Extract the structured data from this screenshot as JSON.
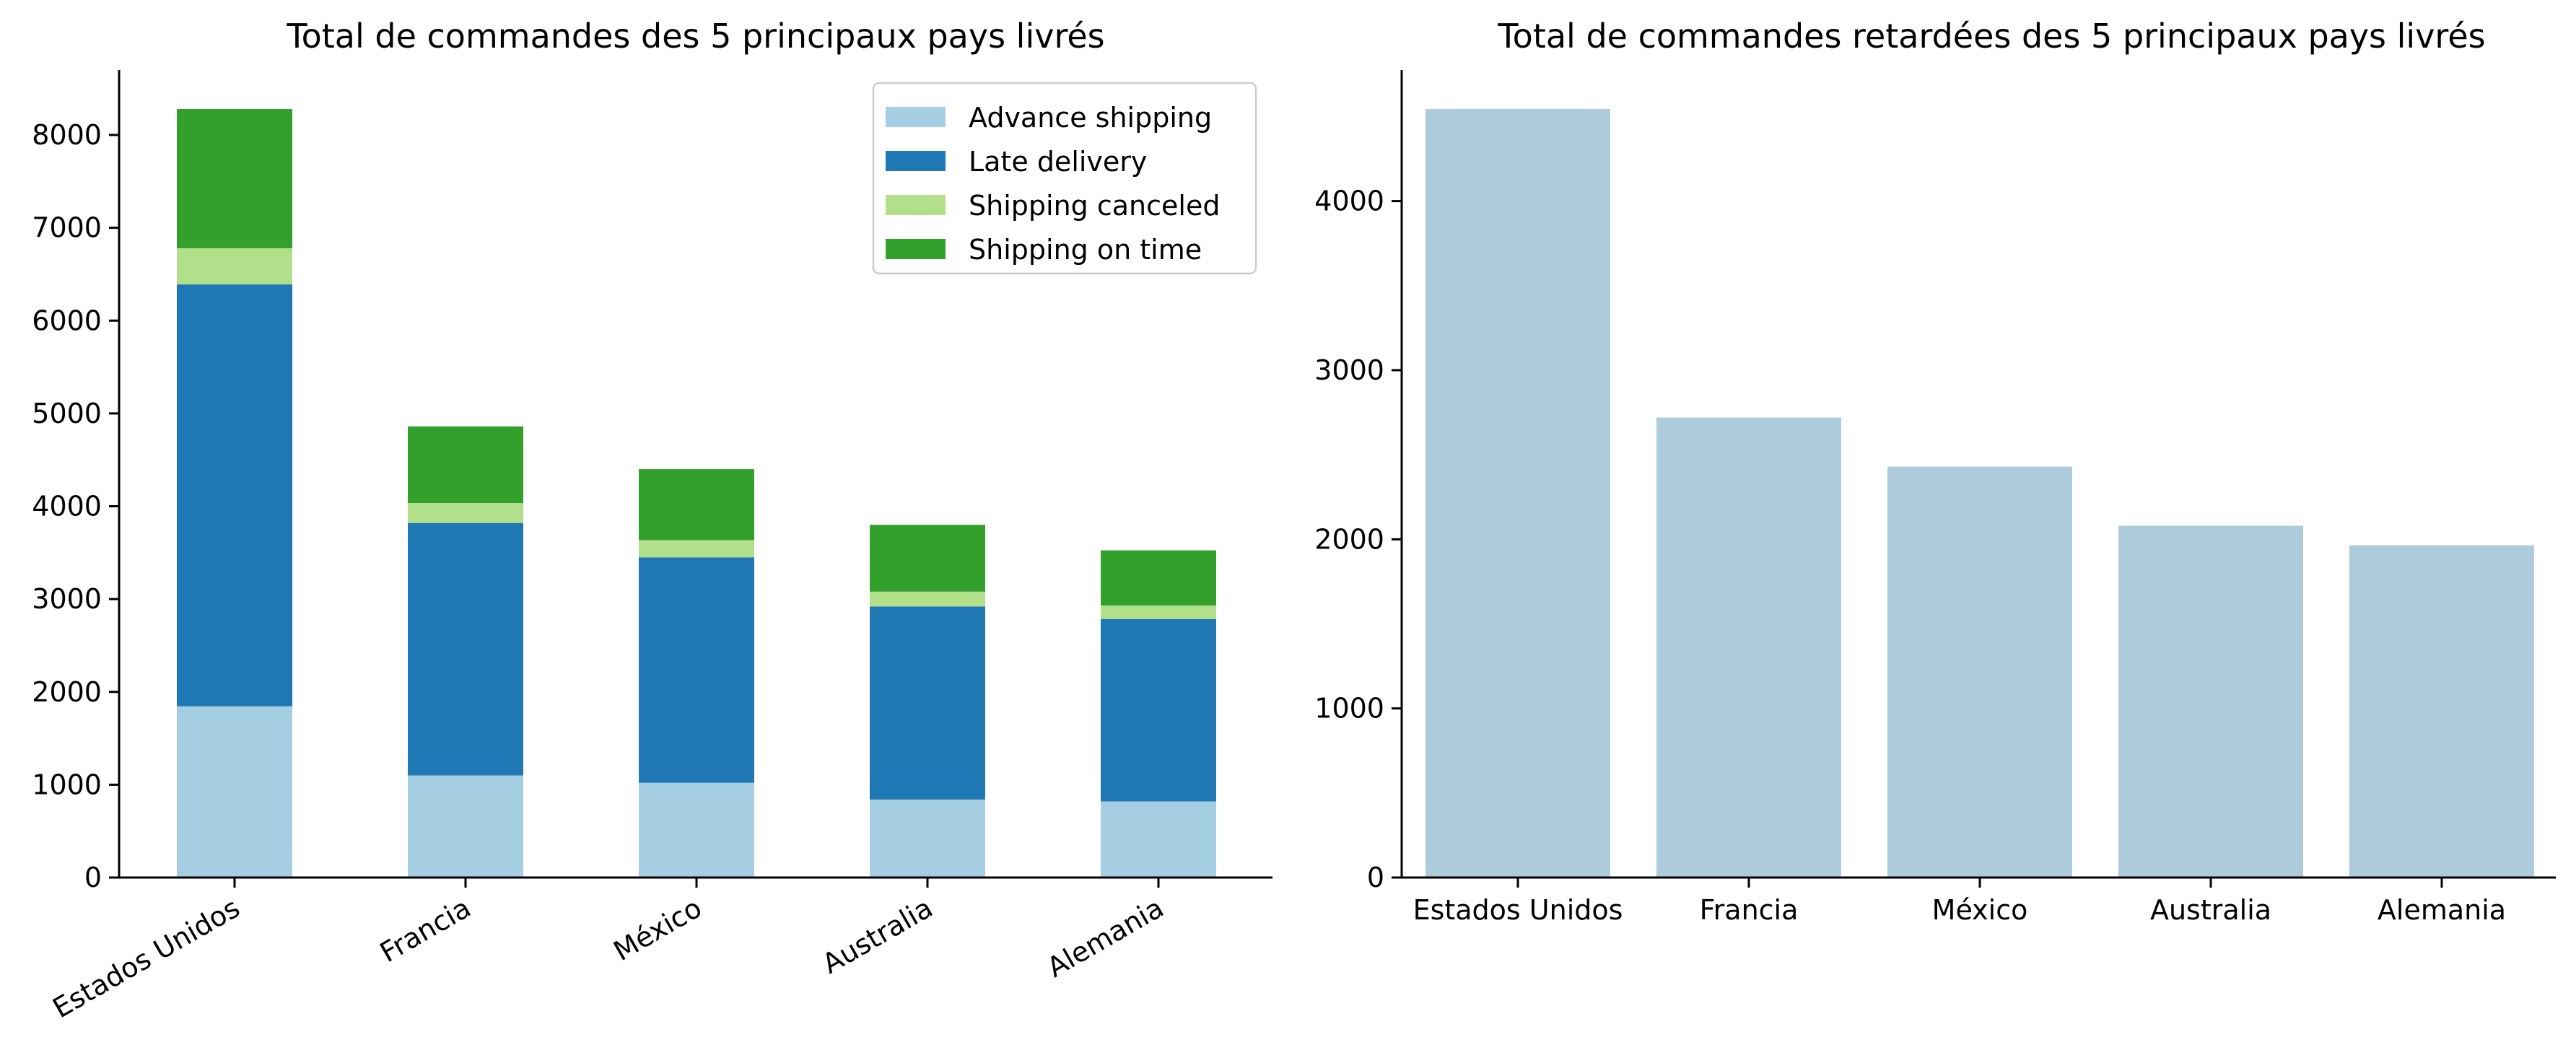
{
  "chart_data": [
    {
      "type": "bar",
      "stacked": true,
      "title": "Total de commandes des 5 principaux pays livrés",
      "xlabel": "",
      "ylabel": "",
      "categories": [
        "Estados Unidos",
        "Francia",
        "México",
        "Australia",
        "Alemania"
      ],
      "series": [
        {
          "name": "Advance shipping",
          "color": "#a6cee3",
          "values": [
            1845,
            1100,
            1020,
            840,
            820
          ]
        },
        {
          "name": "Late delivery",
          "color": "#1f78b4",
          "values": [
            4545,
            2720,
            2430,
            2080,
            1965
          ]
        },
        {
          "name": "Shipping canceled",
          "color": "#b2df8a",
          "values": [
            390,
            215,
            185,
            160,
            145
          ]
        },
        {
          "name": "Shipping on time",
          "color": "#33a02c",
          "values": [
            1500,
            825,
            765,
            720,
            595
          ]
        }
      ],
      "yticks": [
        "0",
        "1000",
        "2000",
        "3000",
        "4000",
        "5000",
        "6000",
        "7000",
        "8000"
      ],
      "ylim": [
        0,
        8700
      ],
      "legend_placement": "top-right",
      "grid": false,
      "x_tick_rotation": -30
    },
    {
      "type": "bar",
      "title": "Total de commandes retardées des 5 principaux pays livrés",
      "xlabel": "",
      "ylabel": "",
      "categories": [
        "Estados Unidos",
        "Francia",
        "México",
        "Australia",
        "Alemania"
      ],
      "values": [
        4545,
        2720,
        2430,
        2080,
        1965
      ],
      "color": "#aecbdc",
      "yticks": [
        "0",
        "1000",
        "2000",
        "3000",
        "4000"
      ],
      "ylim": [
        0,
        4775
      ],
      "grid": false
    }
  ]
}
